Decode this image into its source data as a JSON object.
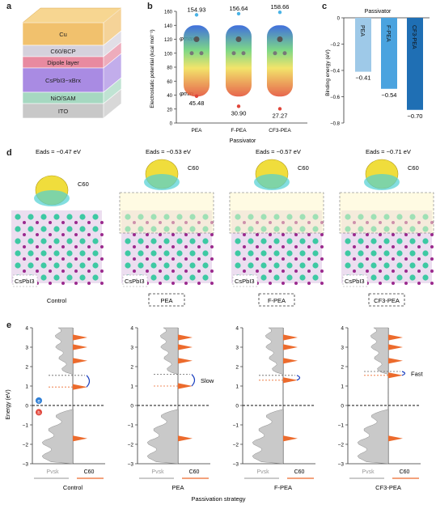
{
  "panel_letters": {
    "a": "a",
    "b": "b",
    "c": "c",
    "d": "d",
    "e": "e"
  },
  "panel_a": {
    "layers": [
      "Cu",
      "C60/BCP",
      "Dipole layer",
      "CsPbI3−xBrx",
      "NiO/SAM",
      "ITO"
    ],
    "colors": [
      "#f1c16d",
      "#d5d1dc",
      "#e88aa0",
      "#a98be3",
      "#a6d8c1",
      "#c8c8c8"
    ]
  },
  "panel_b": {
    "ylabel": "Electrostatic potential (kcal mol⁻¹)",
    "xlabel": "Passivator",
    "phi_max_label": "φmax",
    "phi_min_label": "φmin",
    "ticks": [
      "0",
      "20",
      "40",
      "60",
      "80",
      "100",
      "120",
      "140",
      "160"
    ],
    "molecules": [
      {
        "name": "PEA",
        "max": "154.93",
        "min": "45.48"
      },
      {
        "name": "F-PEA",
        "max": "156.64",
        "min": "30.90"
      },
      {
        "name": "CF3-PEA",
        "max": "158.66",
        "min": "27.27"
      }
    ]
  },
  "panel_d": {
    "columns": [
      {
        "eads": "Eads = −0.47 eV",
        "c60": "C60",
        "surface": "CsPbI3",
        "caption": "Control",
        "boxed": false
      },
      {
        "eads": "Eads = −0.53 eV",
        "c60": "C60",
        "surface": "CsPbI3",
        "caption": "PEA",
        "boxed": true
      },
      {
        "eads": "Eads = −0.57 eV",
        "c60": "C60",
        "surface": "CsPbI3",
        "caption": "F-PEA",
        "boxed": true
      },
      {
        "eads": "Eads = −0.71 eV",
        "c60": "C60",
        "surface": "CsPbI3",
        "caption": "CF3-PEA",
        "boxed": true
      }
    ]
  },
  "panel_e": {
    "ylabel": "Energy (eV)",
    "xlabel": "Passivation strategy",
    "yticks": [
      "−3",
      "−2",
      "−1",
      "0",
      "1",
      "2",
      "3",
      "4"
    ],
    "pvsk": "Pvsk",
    "c60": "C60",
    "electron": "e",
    "hole": "h",
    "panels": [
      {
        "caption": "Control",
        "note": "",
        "gap_top": 1.55,
        "gap_bottom": 0.95
      },
      {
        "caption": "PEA",
        "note": "Slow",
        "gap_top": 1.6,
        "gap_bottom": 1.0
      },
      {
        "caption": "F-PEA",
        "note": "",
        "gap_top": 1.55,
        "gap_bottom": 1.3
      },
      {
        "caption": "CF3-PEA",
        "note": "Fast",
        "gap_top": 1.75,
        "gap_bottom": 1.55
      }
    ]
  },
  "chart_data": {
    "type": "bar",
    "title": "Passivator",
    "categories": [
      "PEA",
      "F-PEA",
      "CF3-PEA"
    ],
    "values": [
      -0.41,
      -0.54,
      -0.7
    ],
    "value_labels": [
      "−0.41",
      "−0.54",
      "−0.70"
    ],
    "ylabel": "Binding energy (eV)",
    "ylim": [
      -0.8,
      0
    ],
    "yticks": [
      "0",
      "−0.2",
      "−0.4",
      "−0.6",
      "−0.8"
    ],
    "colors": [
      "#9ec9e8",
      "#4aa3df",
      "#1f6fb4"
    ]
  }
}
